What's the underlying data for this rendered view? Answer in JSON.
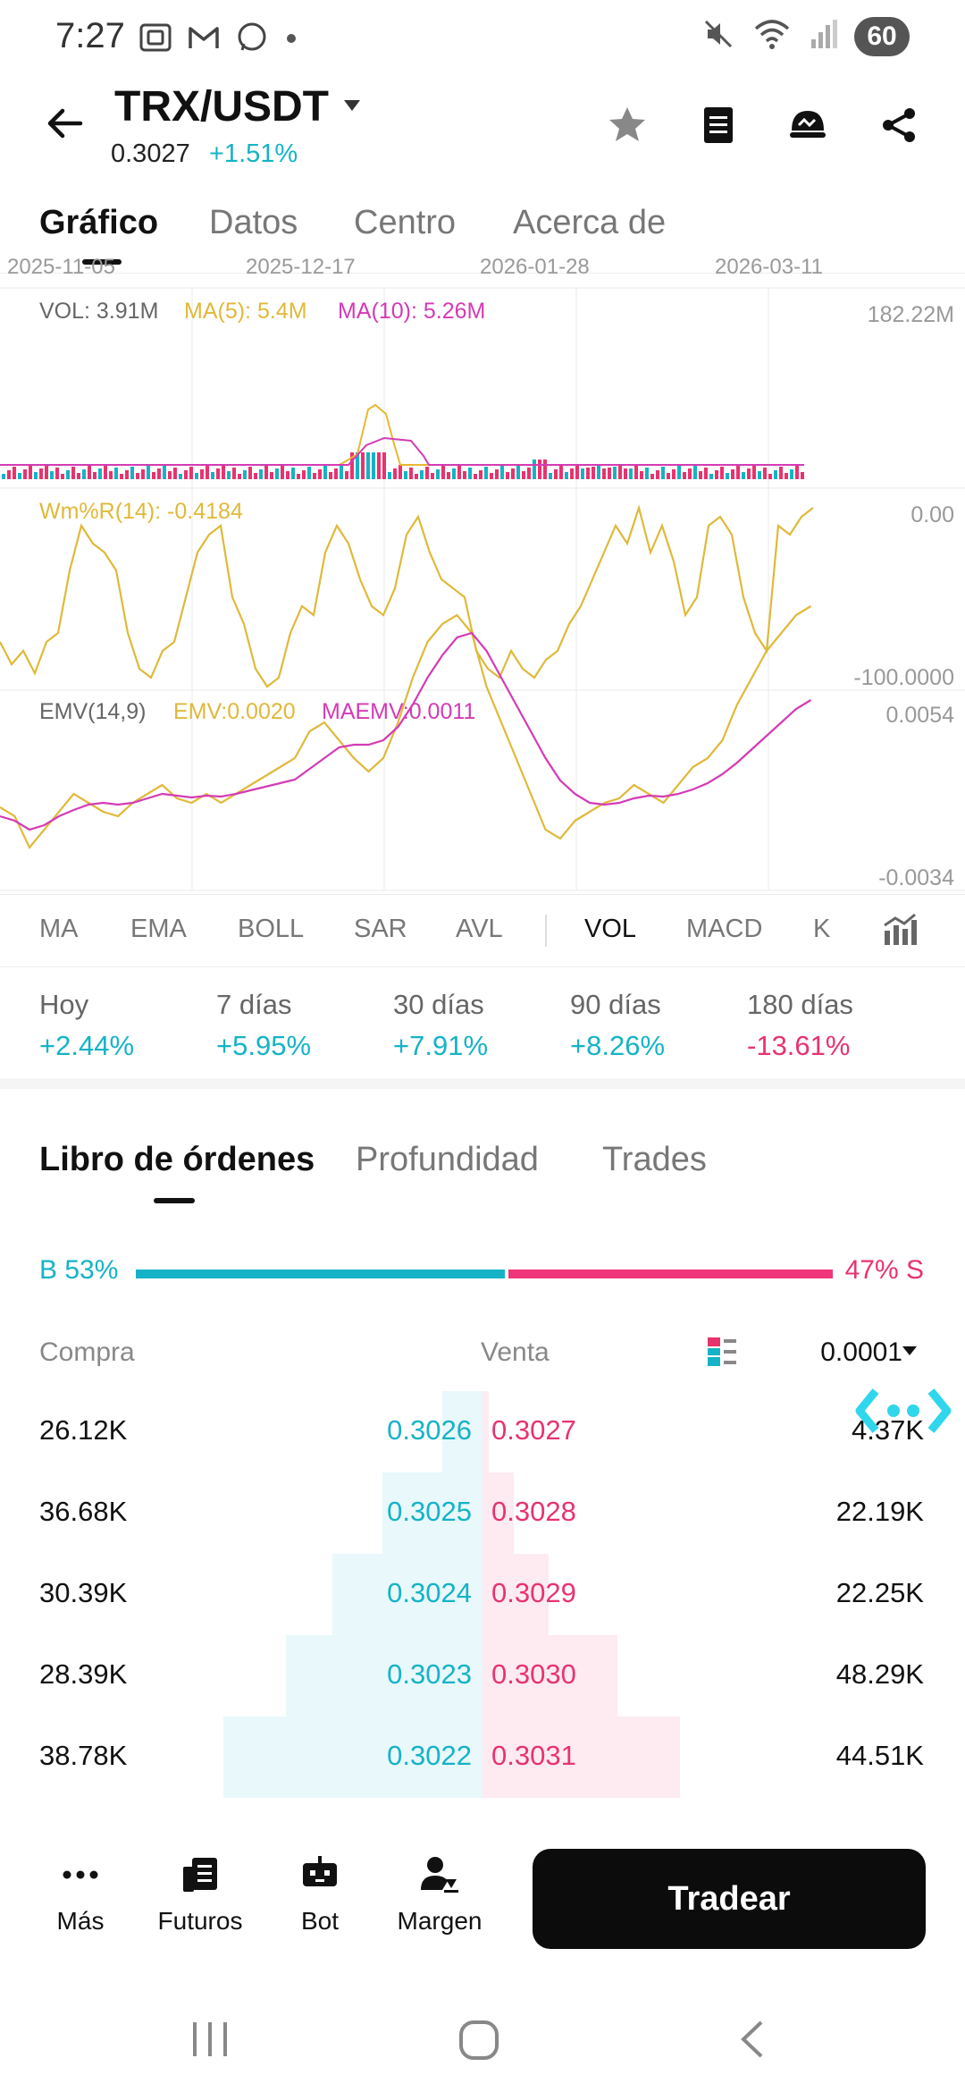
{
  "status_bar": {
    "time": "7:27",
    "battery": "60",
    "left_icons": [
      "screenshot-icon",
      "gmail-icon",
      "whatsapp-icon",
      "dot-icon"
    ],
    "right_icons": [
      "mute-icon",
      "wifi-icon",
      "signal-icon",
      "battery-icon"
    ]
  },
  "header": {
    "pair": "TRX/USDT",
    "price": "0.3027",
    "change": "+1.51%",
    "icons": [
      "star-icon",
      "notes-icon",
      "alert-face-icon",
      "share-icon"
    ]
  },
  "tabs": [
    {
      "label": "Gráfico",
      "active": true
    },
    {
      "label": "Datos",
      "active": false
    },
    {
      "label": "Centro",
      "active": false
    },
    {
      "label": "Acerca de",
      "active": false
    }
  ],
  "date_axis": [
    "2025-11-05",
    "2025-12-17",
    "2026-01-28",
    "2026-03-11"
  ],
  "volume": {
    "vol_label": "VOL: 3.91M",
    "ma5_label": "MA(5): 5.4M",
    "ma10_label": "MA(10): 5.26M",
    "axis_max": "182.22M"
  },
  "wmr": {
    "label": "Wm%R(14): -0.4184",
    "axis_top": "0.00",
    "axis_bottom": "-100.0000"
  },
  "emv": {
    "label": "EMV(14,9)",
    "emv_label": "EMV:0.0020",
    "maemv_label": "MAEMV:0.0011",
    "axis_top": "0.0054",
    "axis_bottom": "-0.0034"
  },
  "indicators": [
    {
      "label": "MA",
      "selected": false
    },
    {
      "label": "EMA",
      "selected": false
    },
    {
      "label": "BOLL",
      "selected": false
    },
    {
      "label": "SAR",
      "selected": false
    },
    {
      "label": "AVL",
      "selected": false
    },
    {
      "label": "VOL",
      "selected": true
    },
    {
      "label": "MACD",
      "selected": false
    },
    {
      "label": "K",
      "selected": false
    }
  ],
  "performance": [
    {
      "label": "Hoy",
      "value": "+2.44%",
      "color": "#15b3c7"
    },
    {
      "label": "7 días",
      "value": "+5.95%",
      "color": "#15b3c7"
    },
    {
      "label": "30 días",
      "value": "+7.91%",
      "color": "#15b3c7"
    },
    {
      "label": "90 días",
      "value": "+8.26%",
      "color": "#15b3c7"
    },
    {
      "label": "180 días",
      "value": "-13.61%",
      "color": "#e8336f"
    }
  ],
  "orderbook_tabs": [
    {
      "label": "Libro de órdenes",
      "active": true
    },
    {
      "label": "Profundidad",
      "active": false
    },
    {
      "label": "Trades",
      "active": false
    }
  ],
  "ratio": {
    "buy_label": "B 53%",
    "sell_label": "47% S",
    "buy_fraction": 0.53,
    "sell_fraction": 0.47
  },
  "book_header": {
    "compra": "Compra",
    "venta": "Venta",
    "precision": "0.0001"
  },
  "book_rows": [
    {
      "buy_qty": "26.12K",
      "buy_price": "0.3026",
      "sell_price": "0.3027",
      "sell_qty": "4.37K",
      "buy_depth": 0.13,
      "sell_depth": 0.02
    },
    {
      "buy_qty": "36.68K",
      "buy_price": "0.3025",
      "sell_price": "0.3028",
      "sell_qty": "22.19K",
      "buy_depth": 0.32,
      "sell_depth": 0.1
    },
    {
      "buy_qty": "30.39K",
      "buy_price": "0.3024",
      "sell_price": "0.3029",
      "sell_qty": "22.25K",
      "buy_depth": 0.48,
      "sell_depth": 0.21
    },
    {
      "buy_qty": "28.39K",
      "buy_price": "0.3023",
      "sell_price": "0.3030",
      "sell_qty": "48.29K",
      "buy_depth": 0.63,
      "sell_depth": 0.43
    },
    {
      "buy_qty": "38.78K",
      "buy_price": "0.3022",
      "sell_price": "0.3031",
      "sell_qty": "44.51K",
      "buy_depth": 0.83,
      "sell_depth": 0.63
    }
  ],
  "actions": [
    {
      "label": "Más",
      "icon": "more-icon"
    },
    {
      "label": "Futuros",
      "icon": "futures-icon"
    },
    {
      "label": "Bot",
      "icon": "bot-icon"
    },
    {
      "label": "Margen",
      "icon": "margin-icon"
    }
  ],
  "trade_button": "Tradear",
  "colors": {
    "buy": "#15b3c7",
    "sell": "#e8336f",
    "ma5": "#e8b830",
    "ma10": "#d43bb5"
  },
  "nav_icons": [
    "recents-icon",
    "home-icon",
    "back-nav-icon"
  ]
}
